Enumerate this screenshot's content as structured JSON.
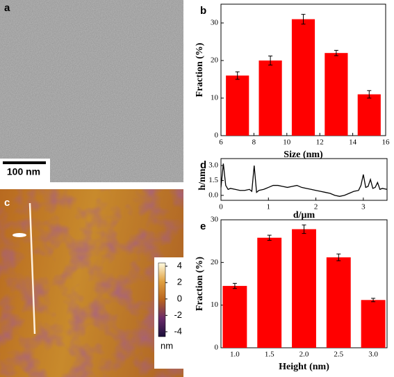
{
  "images": [
    {
      "label": "a",
      "scale_bar": "100 nm"
    },
    {
      "label": "c"
    }
  ],
  "chart_data": [
    {
      "type": "bar",
      "label": "b",
      "x": [
        7,
        9,
        11,
        13,
        15
      ],
      "values": [
        16,
        20,
        31,
        22,
        11
      ],
      "errors": [
        1,
        1.2,
        1.3,
        0.7,
        1
      ],
      "color": "#ff0000",
      "xlim": [
        6,
        16
      ],
      "xticks": [
        6,
        8,
        10,
        12,
        14,
        16
      ],
      "ylim": [
        0,
        35
      ],
      "yticks": [
        0,
        10,
        20,
        30
      ],
      "xlabel": "Size (nm)",
      "ylabel": "Fraction (%)"
    },
    {
      "type": "line",
      "label": "d",
      "x": [
        0,
        0.05,
        0.1,
        0.15,
        0.2,
        0.3,
        0.4,
        0.5,
        0.6,
        0.65,
        0.7,
        0.75,
        0.8,
        0.9,
        1.0,
        1.1,
        1.2,
        1.3,
        1.4,
        1.5,
        1.6,
        1.7,
        1.8,
        1.9,
        2.0,
        2.1,
        2.2,
        2.3,
        2.4,
        2.5,
        2.6,
        2.7,
        2.8,
        2.9,
        2.95,
        3.0,
        3.05,
        3.1,
        3.15,
        3.2,
        3.25,
        3.3,
        3.35,
        3.4,
        3.5
      ],
      "values": [
        0.8,
        3.2,
        1.0,
        0.6,
        0.7,
        0.6,
        0.5,
        0.5,
        0.6,
        0.4,
        3.0,
        0.3,
        0.5,
        0.6,
        0.8,
        1.0,
        1.0,
        0.9,
        0.8,
        0.9,
        1.0,
        0.8,
        0.7,
        0.6,
        0.5,
        0.4,
        0.3,
        0.2,
        0.0,
        -0.1,
        0.0,
        0.2,
        0.4,
        0.5,
        1.0,
        2.1,
        0.8,
        0.9,
        1.6,
        0.7,
        0.8,
        1.3,
        0.6,
        0.7,
        0.6
      ],
      "color": "#000000",
      "xlim": [
        0,
        3.5
      ],
      "xticks": [
        0,
        1,
        2,
        3
      ],
      "ylim": [
        -0.5,
        3.7
      ],
      "yticks": [
        {
          "value": 0,
          "label": "0.0"
        },
        {
          "value": 1.5,
          "label": "1.5"
        },
        {
          "value": 3,
          "label": "3.0"
        }
      ],
      "xlabel": "d/μm",
      "ylabel": "h/nm"
    },
    {
      "type": "bar",
      "label": "e",
      "x": [
        1,
        1.5,
        2,
        2.5,
        3
      ],
      "values": [
        14.5,
        25.8,
        27.8,
        21.2,
        11.2
      ],
      "errors": [
        0.6,
        0.6,
        1,
        0.8,
        0.4
      ],
      "color": "#ff0000",
      "xlim": [
        0.8,
        3.2
      ],
      "xticks": [
        {
          "value": 1,
          "label": "1.0"
        },
        {
          "value": 1.5,
          "label": "1.5"
        },
        {
          "value": 2,
          "label": "2.0"
        },
        {
          "value": 2.5,
          "label": "2.5"
        },
        {
          "value": 3,
          "label": "3.0"
        }
      ],
      "ylim": [
        0,
        30
      ],
      "yticks": [
        0,
        10,
        20,
        30
      ],
      "xlabel": "Height (nm)",
      "ylabel": "Fraction (%)"
    },
    {
      "type": "colorbar",
      "ylim": [
        -4.6,
        4.4
      ],
      "yticks": [
        4,
        2,
        0,
        -2,
        -4
      ],
      "unit": "nm",
      "colors": [
        "#1a0f3a",
        "#6a2a6a",
        "#b8641e",
        "#e0a040",
        "#fffbe0"
      ]
    }
  ]
}
